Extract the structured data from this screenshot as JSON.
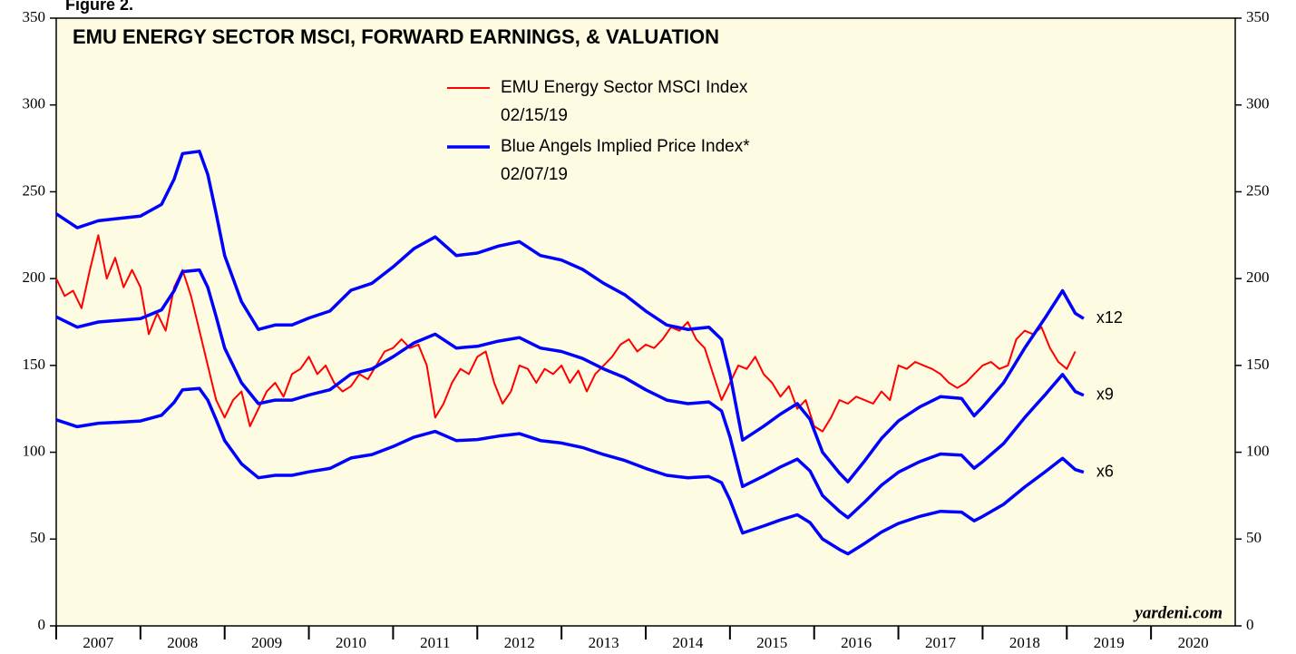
{
  "figure_label": "Figure 2.",
  "chart_data": {
    "type": "line",
    "title": "EMU ENERGY SECTOR MSCI, FORWARD EARNINGS, & VALUATION",
    "watermark": "yardeni.com",
    "legend": [
      {
        "label": "EMU Energy Sector MSCI Index",
        "date": "02/15/19",
        "color": "#ff0000"
      },
      {
        "label": "Blue Angels Implied Price Index*",
        "date": "02/07/19",
        "color": "#0000ff"
      }
    ],
    "xlim": [
      2007,
      2021
    ],
    "xticks": [
      {
        "value": 2007,
        "label": "2007"
      },
      {
        "value": 2008,
        "label": "2008"
      },
      {
        "value": 2009,
        "label": "2009"
      },
      {
        "value": 2010,
        "label": "2010"
      },
      {
        "value": 2011,
        "label": "2011"
      },
      {
        "value": 2012,
        "label": "2012"
      },
      {
        "value": 2013,
        "label": "2013"
      },
      {
        "value": 2014,
        "label": "2014"
      },
      {
        "value": 2015,
        "label": "2015"
      },
      {
        "value": 2016,
        "label": "2016"
      },
      {
        "value": 2017,
        "label": "2017"
      },
      {
        "value": 2018,
        "label": "2018"
      },
      {
        "value": 2019,
        "label": "2019"
      },
      {
        "value": 2020,
        "label": "2020"
      }
    ],
    "ylim": [
      0,
      350
    ],
    "yticks": [
      0,
      50,
      100,
      150,
      200,
      250,
      300,
      350
    ],
    "y2lim": [
      0,
      350
    ],
    "y2ticks": [
      0,
      50,
      100,
      150,
      200,
      250,
      300,
      350
    ],
    "series": [
      {
        "color": "#ff0000",
        "x": [
          2007,
          2007.1,
          2007.2,
          2007.3,
          2007.4,
          2007.5,
          2007.6,
          2007.7,
          2007.8,
          2007.9,
          2008,
          2008.1,
          2008.2,
          2008.3,
          2008.4,
          2008.5,
          2008.6,
          2008.7,
          2008.8,
          2008.9,
          2009,
          2009.1,
          2009.2,
          2009.3,
          2009.4,
          2009.5,
          2009.6,
          2009.7,
          2009.8,
          2009.9,
          2010,
          2010.1,
          2010.2,
          2010.3,
          2010.4,
          2010.5,
          2010.6,
          2010.7,
          2010.8,
          2010.9,
          2011,
          2011.1,
          2011.2,
          2011.3,
          2011.4,
          2011.5,
          2011.6,
          2011.7,
          2011.8,
          2011.9,
          2012,
          2012.1,
          2012.2,
          2012.3,
          2012.4,
          2012.5,
          2012.6,
          2012.7,
          2012.8,
          2012.9,
          2013,
          2013.1,
          2013.2,
          2013.3,
          2013.4,
          2013.5,
          2013.6,
          2013.7,
          2013.8,
          2013.9,
          2014,
          2014.1,
          2014.2,
          2014.3,
          2014.4,
          2014.5,
          2014.6,
          2014.7,
          2014.8,
          2014.9,
          2015,
          2015.1,
          2015.2,
          2015.3,
          2015.4,
          2015.5,
          2015.6,
          2015.7,
          2015.8,
          2015.9,
          2016,
          2016.1,
          2016.2,
          2016.3,
          2016.4,
          2016.5,
          2016.6,
          2016.7,
          2016.8,
          2016.9,
          2017,
          2017.1,
          2017.2,
          2017.3,
          2017.4,
          2017.5,
          2017.6,
          2017.7,
          2017.8,
          2017.9,
          2018,
          2018.1,
          2018.2,
          2018.3,
          2018.4,
          2018.5,
          2018.6,
          2018.7,
          2018.8,
          2018.9,
          2019,
          2019.1
        ],
        "values": [
          200,
          190,
          193,
          183,
          205,
          225,
          200,
          212,
          195,
          205,
          195,
          168,
          180,
          170,
          195,
          205,
          190,
          170,
          150,
          130,
          120,
          130,
          135,
          115,
          125,
          135,
          140,
          132,
          145,
          148,
          155,
          145,
          150,
          140,
          135,
          138,
          145,
          142,
          150,
          158,
          160,
          165,
          160,
          162,
          150,
          120,
          128,
          140,
          148,
          145,
          155,
          158,
          140,
          128,
          135,
          150,
          148,
          140,
          148,
          145,
          150,
          140,
          147,
          135,
          145,
          150,
          155,
          162,
          165,
          158,
          162,
          160,
          165,
          172,
          170,
          175,
          165,
          160,
          145,
          130,
          140,
          150,
          148,
          155,
          145,
          140,
          132,
          138,
          125,
          130,
          115,
          112,
          120,
          130,
          128,
          132,
          130,
          128,
          135,
          130,
          150,
          148,
          152,
          150,
          148,
          145,
          140,
          137,
          140,
          145,
          150,
          152,
          148,
          150,
          165,
          170,
          168,
          172,
          160,
          152,
          148,
          158
        ]
      },
      {
        "name": "x12",
        "color": "#0000ff",
        "x": [
          2007,
          2007.25,
          2007.5,
          2007.75,
          2008,
          2008.25,
          2008.4,
          2008.5,
          2008.7,
          2008.8,
          2008.9,
          2009,
          2009.2,
          2009.4,
          2009.6,
          2009.8,
          2010,
          2010.25,
          2010.5,
          2010.75,
          2011,
          2011.25,
          2011.5,
          2011.75,
          2012,
          2012.25,
          2012.5,
          2012.75,
          2013,
          2013.25,
          2013.5,
          2013.75,
          2014,
          2014.25,
          2014.5,
          2014.75,
          2014.9,
          2015,
          2015.15,
          2015.4,
          2015.6,
          2015.8,
          2015.95,
          2016.1,
          2016.3,
          2016.4,
          2016.6,
          2016.8,
          2017,
          2017.25,
          2017.5,
          2017.75,
          2017.9,
          2018,
          2018.25,
          2018.5,
          2018.75,
          2018.95,
          2019.1,
          2019.2
        ],
        "values": [
          237.3,
          229.3,
          233.3,
          234.7,
          236,
          242.7,
          257.3,
          272,
          273.3,
          260,
          237.3,
          213.3,
          186.7,
          170.7,
          173.3,
          173.3,
          177.3,
          181.3,
          193.3,
          197.3,
          206.7,
          217.3,
          224,
          213.3,
          214.7,
          218.7,
          221.3,
          213.3,
          210.7,
          205.3,
          197.3,
          190.7,
          181.3,
          173.3,
          170.7,
          172,
          165,
          145,
          107,
          115,
          122,
          128,
          119,
          100,
          88,
          83,
          95,
          108,
          118,
          126,
          132,
          131,
          121,
          126,
          140,
          160,
          178,
          193,
          180,
          177
        ]
      },
      {
        "name": "x9",
        "color": "#0000ff",
        "x": [
          2007,
          2007.25,
          2007.5,
          2007.75,
          2008,
          2008.25,
          2008.4,
          2008.5,
          2008.7,
          2008.8,
          2008.9,
          2009,
          2009.2,
          2009.4,
          2009.6,
          2009.8,
          2010,
          2010.25,
          2010.5,
          2010.75,
          2011,
          2011.25,
          2011.5,
          2011.75,
          2012,
          2012.25,
          2012.5,
          2012.75,
          2013,
          2013.25,
          2013.5,
          2013.75,
          2014,
          2014.25,
          2014.5,
          2014.75,
          2014.9,
          2015,
          2015.15,
          2015.4,
          2015.6,
          2015.8,
          2015.95,
          2016.1,
          2016.3,
          2016.4,
          2016.6,
          2016.8,
          2017,
          2017.25,
          2017.5,
          2017.75,
          2017.9,
          2018,
          2018.25,
          2018.5,
          2018.75,
          2018.95,
          2019.1,
          2019.2
        ],
        "values": [
          178,
          172,
          175,
          176,
          177,
          182,
          193,
          204,
          205,
          195,
          178,
          160,
          140,
          128,
          130,
          130,
          133,
          136,
          145,
          148,
          155,
          163,
          168,
          160,
          161,
          164,
          166,
          160,
          158,
          154,
          148,
          143,
          136,
          130,
          128,
          129,
          123.8,
          108.8,
          80.3,
          86.3,
          91.5,
          96,
          89.3,
          75,
          66,
          62.3,
          71.3,
          81,
          88.5,
          94.5,
          99,
          98.3,
          90.8,
          94.5,
          105,
          120,
          133.5,
          144.8,
          135,
          132.8
        ]
      },
      {
        "name": "x6",
        "color": "#0000ff",
        "x": [
          2007,
          2007.25,
          2007.5,
          2007.75,
          2008,
          2008.25,
          2008.4,
          2008.5,
          2008.7,
          2008.8,
          2008.9,
          2009,
          2009.2,
          2009.4,
          2009.6,
          2009.8,
          2010,
          2010.25,
          2010.5,
          2010.75,
          2011,
          2011.25,
          2011.5,
          2011.75,
          2012,
          2012.25,
          2012.5,
          2012.75,
          2013,
          2013.25,
          2013.5,
          2013.75,
          2014,
          2014.25,
          2014.5,
          2014.75,
          2014.9,
          2015,
          2015.15,
          2015.4,
          2015.6,
          2015.8,
          2015.95,
          2016.1,
          2016.3,
          2016.4,
          2016.6,
          2016.8,
          2017,
          2017.25,
          2017.5,
          2017.75,
          2017.9,
          2018,
          2018.25,
          2018.5,
          2018.75,
          2018.95,
          2019.1,
          2019.2
        ],
        "values": [
          118.7,
          114.7,
          116.7,
          117.3,
          118,
          121.3,
          128.7,
          136,
          136.7,
          130,
          118.7,
          106.7,
          93.3,
          85.3,
          86.7,
          86.7,
          88.7,
          90.7,
          96.7,
          98.7,
          103.3,
          108.7,
          112,
          106.7,
          107.3,
          109.3,
          110.7,
          106.7,
          105.3,
          102.7,
          98.7,
          95.3,
          90.7,
          86.7,
          85.3,
          86,
          82.5,
          72.5,
          53.5,
          57.5,
          61,
          64,
          59.5,
          50,
          44,
          41.5,
          47.5,
          54,
          59,
          63,
          66,
          65.5,
          60.5,
          63,
          70,
          80,
          89,
          96.5,
          90,
          88.5
        ]
      }
    ]
  }
}
